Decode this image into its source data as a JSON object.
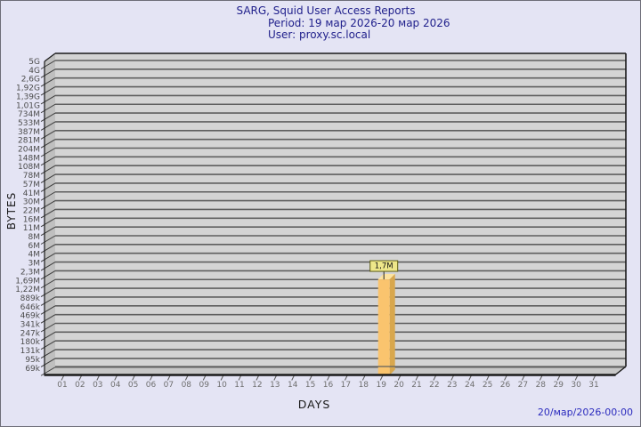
{
  "chart_data": {
    "type": "bar",
    "title": "SARG, Squid User Access Reports",
    "subtitle_period": "Period: 19 мар 2026-20 мар 2026",
    "subtitle_user": "User: proxy.sc.local",
    "xlabel": "DAYS",
    "ylabel": "BYTES",
    "y_scale": "logarithmic-like byte scale",
    "y_tick_labels": [
      "5G",
      "4G",
      "2,6G",
      "1,92G",
      "1,39G",
      "1,01G",
      "734M",
      "533M",
      "387M",
      "281M",
      "204M",
      "148M",
      "108M",
      "78M",
      "57M",
      "41M",
      "30M",
      "22M",
      "16M",
      "11M",
      "8M",
      "6M",
      "4M",
      "3M",
      "2,3M",
      "1,69M",
      "1,22M",
      "889k",
      "646k",
      "469k",
      "341k",
      "247k",
      "180k",
      "131k",
      "95k",
      "69k"
    ],
    "x_categories": [
      "01",
      "02",
      "03",
      "04",
      "05",
      "06",
      "07",
      "08",
      "09",
      "10",
      "11",
      "12",
      "13",
      "14",
      "15",
      "16",
      "17",
      "18",
      "19",
      "20",
      "21",
      "22",
      "23",
      "24",
      "25",
      "26",
      "27",
      "28",
      "29",
      "30",
      "31"
    ],
    "values_bytes": [
      0,
      0,
      0,
      0,
      0,
      0,
      0,
      0,
      0,
      0,
      0,
      0,
      0,
      0,
      0,
      0,
      0,
      0,
      1700000,
      0,
      0,
      0,
      0,
      0,
      0,
      0,
      0,
      0,
      0,
      0,
      0
    ],
    "bars": [
      {
        "day": "19",
        "value_label": "1,7M",
        "value_bytes": 1700000
      }
    ],
    "legend": "none",
    "grid": "horizontal",
    "footer_timestamp": "20/мар/2026-00:00",
    "colors": {
      "background": "#E4E4F4",
      "title_text": "#21218C",
      "timestamp_text": "#2B2BBE",
      "plot_bg": "#D4D4D4",
      "wall_bg": "#BFBFBF",
      "floor_bg": "#C7C7C7",
      "gridline": "#5F5F5F",
      "diagonal": "#3C3C3C",
      "edge": "#1A1A1A",
      "bar_front": "#FAC46E",
      "bar_top": "#FCE3A0",
      "bar_side": "#D8A74D",
      "value_box_bg": "#EEE78A",
      "value_box_border": "#5C5C14",
      "value_text": "#111111",
      "y_tick_text": "#4C4C4C",
      "x_tick_text": "#6F6F6F"
    }
  }
}
